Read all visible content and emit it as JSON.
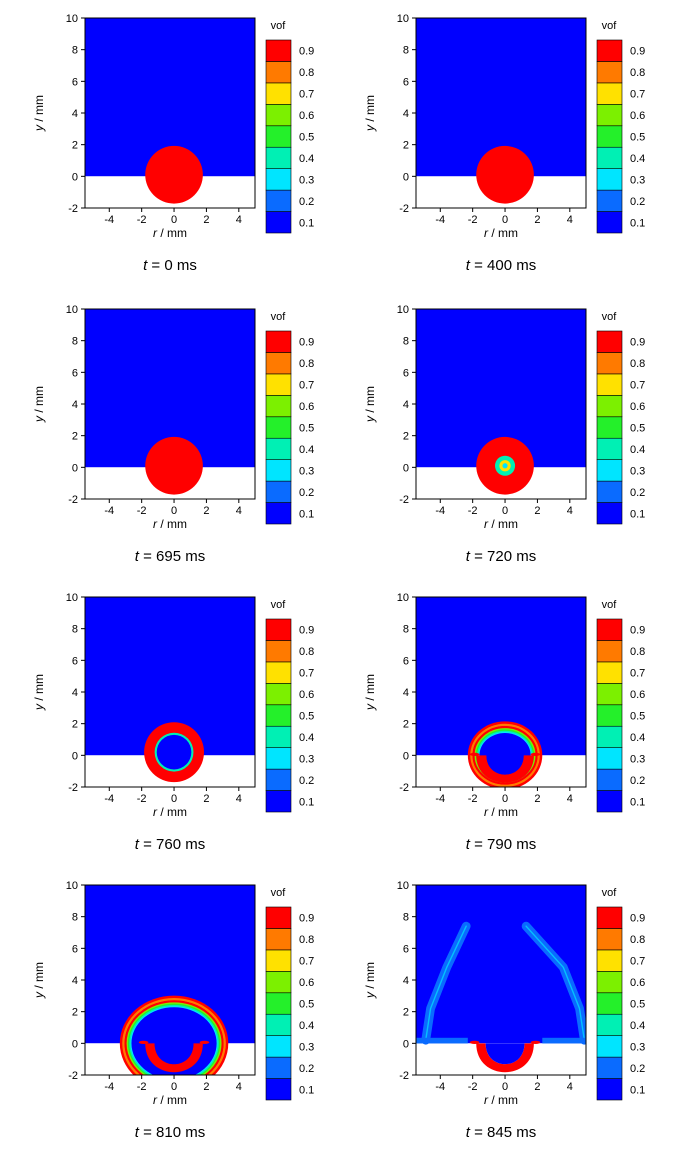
{
  "figure": {
    "xlabel_var": "r",
    "xlabel_unit": " / mm",
    "ylabel_var": "y",
    "ylabel_unit": " / mm",
    "colorbar_title": "vof",
    "colorbar_levels": [
      "0.1",
      "0.2",
      "0.3",
      "0.4",
      "0.5",
      "0.6",
      "0.7",
      "0.8",
      "0.9"
    ],
    "colorbar_colors": [
      "#0000ff",
      "#0a6bff",
      "#00e5ff",
      "#00f0b4",
      "#24f02a",
      "#7cf000",
      "#ffe100",
      "#ff7a00",
      "#ff0000"
    ],
    "time_var": "t",
    "time_sep": " = ",
    "time_unit": " ms",
    "panels": [
      {
        "time": "0"
      },
      {
        "time": "400"
      },
      {
        "time": "695"
      },
      {
        "time": "720"
      },
      {
        "time": "760"
      },
      {
        "time": "790"
      },
      {
        "time": "810"
      },
      {
        "time": "845"
      }
    ]
  },
  "chart_data": {
    "type": "heatmap",
    "field": "vof",
    "x": {
      "label": "r / mm",
      "range": [
        -5.5,
        5
      ],
      "ticks": [
        -4,
        -2,
        0,
        2,
        4
      ]
    },
    "y": {
      "label": "y / mm",
      "range": [
        -2,
        10
      ],
      "ticks": [
        -2,
        0,
        2,
        4,
        6,
        8,
        10
      ]
    },
    "colorbar": {
      "title": "vof",
      "range": [
        0,
        1
      ],
      "levels": [
        0.1,
        0.2,
        0.3,
        0.4,
        0.5,
        0.6,
        0.7,
        0.8,
        0.9
      ]
    },
    "background_value": 0,
    "snapshots_ms": [
      0,
      400,
      695,
      720,
      760,
      790,
      810,
      845
    ]
  }
}
